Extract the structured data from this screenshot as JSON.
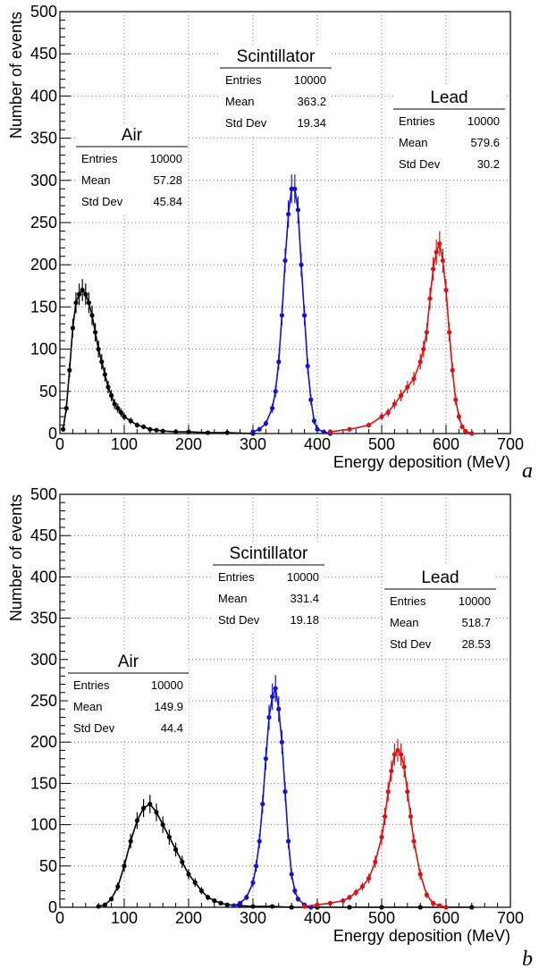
{
  "chart_data": [
    {
      "type": "scatter",
      "panel_label": "a",
      "xlabel": "Energy deposition (MeV)",
      "ylabel": "Number of events",
      "xlim": [
        0,
        700
      ],
      "ylim": [
        0,
        500
      ],
      "x_ticks": [
        "0",
        "100",
        "200",
        "300",
        "400",
        "500",
        "600",
        "700"
      ],
      "y_ticks": [
        "0",
        "50",
        "100",
        "150",
        "200",
        "250",
        "300",
        "350",
        "400",
        "450",
        "500"
      ],
      "grid": true,
      "series": [
        {
          "name": "Air",
          "color": "#000000",
          "stats": {
            "entries_label": "Entries",
            "entries": "10000",
            "mean_label": "Mean",
            "mean": "57.28",
            "stddev_label": "Std Dev",
            "stddev": "45.84"
          },
          "x": [
            5,
            10,
            15,
            20,
            25,
            30,
            35,
            40,
            45,
            50,
            55,
            60,
            65,
            70,
            75,
            80,
            85,
            90,
            95,
            100,
            110,
            120,
            130,
            140,
            150,
            160,
            180,
            200,
            230,
            260,
            300
          ],
          "y": [
            5,
            30,
            75,
            125,
            155,
            165,
            170,
            165,
            155,
            140,
            120,
            100,
            85,
            70,
            55,
            45,
            35,
            30,
            25,
            20,
            15,
            10,
            8,
            5,
            4,
            3,
            2,
            2,
            1,
            1,
            0
          ]
        },
        {
          "name": "Scintillator",
          "color": "#1010e0",
          "stats": {
            "entries_label": "Entries",
            "entries": "10000",
            "mean_label": "Mean",
            "mean": "363.2",
            "stddev_label": "Std Dev",
            "stddev": "19.34"
          },
          "x": [
            300,
            310,
            320,
            330,
            335,
            340,
            345,
            350,
            355,
            360,
            365,
            370,
            375,
            380,
            385,
            390,
            395,
            400,
            410,
            420
          ],
          "y": [
            2,
            5,
            12,
            30,
            50,
            85,
            140,
            205,
            260,
            290,
            290,
            265,
            200,
            140,
            80,
            40,
            15,
            5,
            2,
            0
          ]
        },
        {
          "name": "Lead",
          "color": "#e01010",
          "stats": {
            "entries_label": "Entries",
            "entries": "10000",
            "mean_label": "Mean",
            "mean": "579.6",
            "stddev_label": "Std Dev",
            "stddev": "30.2"
          },
          "x": [
            420,
            450,
            480,
            500,
            510,
            520,
            530,
            540,
            550,
            560,
            565,
            570,
            575,
            580,
            585,
            590,
            595,
            600,
            605,
            610,
            615,
            620,
            625,
            630,
            640
          ],
          "y": [
            2,
            5,
            10,
            20,
            25,
            35,
            45,
            55,
            65,
            85,
            100,
            120,
            160,
            195,
            215,
            225,
            205,
            170,
            120,
            75,
            40,
            20,
            8,
            3,
            0
          ]
        }
      ]
    },
    {
      "type": "scatter",
      "panel_label": "b",
      "xlabel": "Energy deposition (MeV)",
      "ylabel": "Number of events",
      "xlim": [
        0,
        700
      ],
      "ylim": [
        0,
        500
      ],
      "x_ticks": [
        "0",
        "100",
        "200",
        "300",
        "400",
        "500",
        "600",
        "700"
      ],
      "y_ticks": [
        "0",
        "50",
        "100",
        "150",
        "200",
        "250",
        "300",
        "350",
        "400",
        "450",
        "500"
      ],
      "grid": true,
      "series": [
        {
          "name": "Air",
          "color": "#000000",
          "stats": {
            "entries_label": "Entries",
            "entries": "10000",
            "mean_label": "Mean",
            "mean": "149.9",
            "stddev_label": "Std Dev",
            "stddev": "44.4"
          },
          "x": [
            60,
            70,
            80,
            90,
            100,
            110,
            120,
            130,
            140,
            150,
            160,
            170,
            180,
            190,
            200,
            210,
            220,
            230,
            240,
            250,
            260,
            280,
            300,
            330,
            360,
            400,
            450,
            500,
            560,
            640
          ],
          "y": [
            1,
            3,
            10,
            25,
            50,
            80,
            105,
            120,
            125,
            115,
            100,
            85,
            70,
            55,
            40,
            30,
            20,
            12,
            8,
            5,
            3,
            2,
            1,
            1,
            0,
            0,
            0,
            0,
            0,
            0
          ]
        },
        {
          "name": "Scintillator",
          "color": "#1010e0",
          "stats": {
            "entries_label": "Entries",
            "entries": "10000",
            "mean_label": "Mean",
            "mean": "331.4",
            "stddev_label": "Std Dev",
            "stddev": "19.18"
          },
          "x": [
            270,
            280,
            290,
            300,
            305,
            310,
            315,
            320,
            325,
            330,
            335,
            340,
            345,
            350,
            355,
            360,
            365,
            370,
            380,
            390
          ],
          "y": [
            2,
            5,
            12,
            30,
            50,
            80,
            125,
            180,
            230,
            255,
            265,
            240,
            200,
            140,
            80,
            40,
            20,
            10,
            3,
            0
          ]
        },
        {
          "name": "Lead",
          "color": "#e01010",
          "stats": {
            "entries_label": "Entries",
            "entries": "10000",
            "mean_label": "Mean",
            "mean": "518.7",
            "stddev_label": "Std Dev",
            "stddev": "28.53"
          },
          "x": [
            380,
            400,
            420,
            440,
            450,
            460,
            470,
            480,
            490,
            500,
            505,
            510,
            515,
            520,
            525,
            530,
            535,
            540,
            545,
            550,
            560,
            570,
            580,
            590,
            600
          ],
          "y": [
            1,
            3,
            5,
            8,
            12,
            18,
            25,
            35,
            55,
            85,
            110,
            140,
            165,
            185,
            190,
            185,
            170,
            140,
            110,
            80,
            40,
            15,
            5,
            2,
            0
          ]
        }
      ]
    }
  ]
}
